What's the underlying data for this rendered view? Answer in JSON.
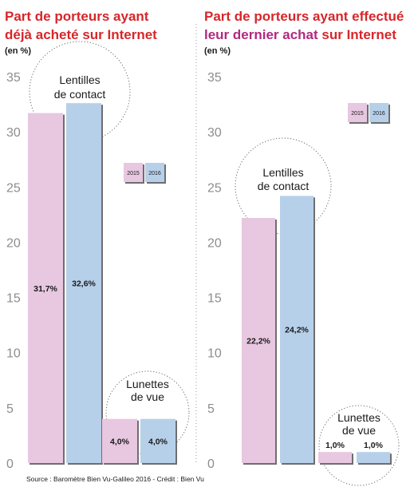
{
  "colors": {
    "red": "#d7262a",
    "magenta": "#b2287f",
    "pink_bar": "#e8c7e0",
    "blue_bar": "#b7d0ea",
    "axis_text": "#8d8d8d",
    "bar_label": "#1a1a1a"
  },
  "source": "Source : Baromètre Bien Vu-Galileo 2016 - Crédit : Bien Vu",
  "chart_data": [
    {
      "type": "bar",
      "title_line1": "Part de porteurs ayant",
      "title_line2": "déjà acheté sur Internet",
      "unit": "(en %)",
      "ylim": [
        0,
        35
      ],
      "yticks": [
        "0",
        "5",
        "10",
        "15",
        "20",
        "25",
        "30",
        "35"
      ],
      "legend": [
        "2015",
        "2016"
      ],
      "legend_placement": "middle-right",
      "grid": false,
      "groups": [
        {
          "label_lines": [
            "Lentilles",
            "de contact"
          ],
          "values": [
            31.7,
            32.6
          ],
          "value_labels": [
            "31,7%",
            "32,6%"
          ]
        },
        {
          "label_lines": [
            "Lunettes",
            "de vue"
          ],
          "values": [
            4.0,
            4.0
          ],
          "value_labels": [
            "4,0%",
            "4,0%"
          ]
        }
      ],
      "series": [
        {
          "name": "2015",
          "values": [
            31.7,
            4.0
          ]
        },
        {
          "name": "2016",
          "values": [
            32.6,
            4.0
          ]
        }
      ]
    },
    {
      "type": "bar",
      "title_line1": "Part de porteurs ayant effectué",
      "title_line2_a": "leur dernier achat",
      "title_line2_b": " sur Internet",
      "unit": "(en %)",
      "ylim": [
        0,
        35
      ],
      "yticks": [
        "0",
        "5",
        "10",
        "15",
        "20",
        "25",
        "30",
        "35"
      ],
      "legend": [
        "2015",
        "2016"
      ],
      "legend_placement": "top-right",
      "grid": false,
      "groups": [
        {
          "label_lines": [
            "Lentilles",
            "de contact"
          ],
          "values": [
            22.2,
            24.2
          ],
          "value_labels": [
            "22,2%",
            "24,2%"
          ]
        },
        {
          "label_lines": [
            "Lunettes",
            "de vue"
          ],
          "values": [
            1.0,
            1.0
          ],
          "value_labels": [
            "1,0%",
            "1,0%"
          ]
        }
      ],
      "series": [
        {
          "name": "2015",
          "values": [
            22.2,
            1.0
          ]
        },
        {
          "name": "2016",
          "values": [
            24.2,
            1.0
          ]
        }
      ]
    }
  ]
}
